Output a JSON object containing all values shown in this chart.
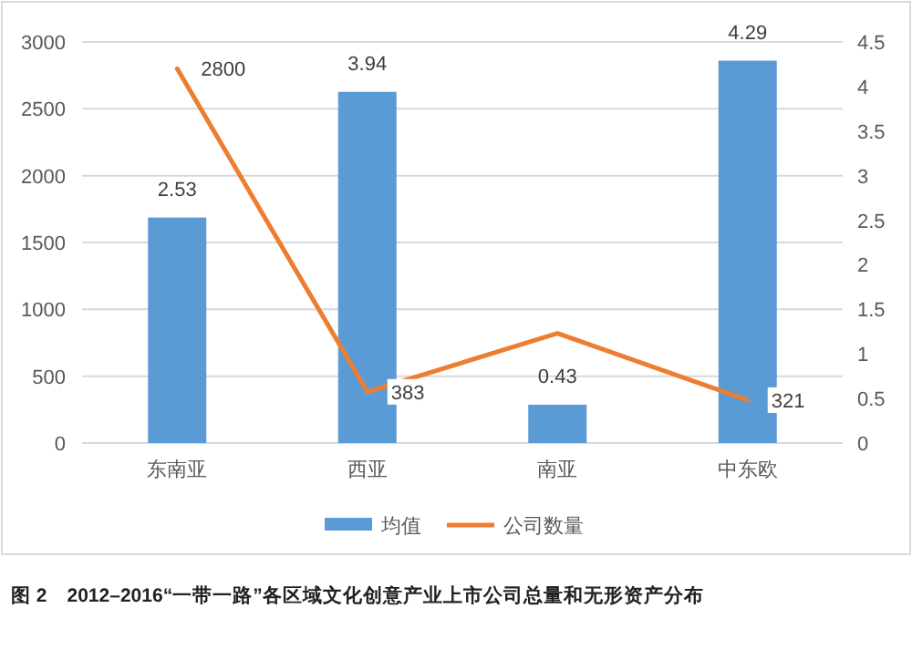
{
  "chart_data": {
    "type": "bar",
    "categories": [
      "东南亚",
      "西亚",
      "南亚",
      "中东欧"
    ],
    "series": [
      {
        "name": "均值",
        "axis": "y2",
        "color": "#5b9bd5",
        "values": [
          2.53,
          3.94,
          0.43,
          4.29
        ],
        "value_labels": [
          "2.53",
          "3.94",
          "0.43",
          "4.29"
        ]
      },
      {
        "name": "公司数量",
        "type": "line",
        "axis": "y",
        "color": "#ed7d31",
        "values": [
          2800,
          383,
          820,
          321
        ],
        "value_labels": [
          "2800",
          "383",
          null,
          "321"
        ]
      }
    ],
    "ylim": [
      0,
      3000
    ],
    "yticks": [
      0,
      500,
      1000,
      1500,
      2000,
      2500,
      3000
    ],
    "y2lim": [
      0,
      4.5
    ],
    "y2ticks": [
      0,
      0.5,
      1,
      1.5,
      2,
      2.5,
      3,
      3.5,
      4,
      4.5
    ],
    "grid": "y",
    "legend": "bottom",
    "marker": "none",
    "annotations": [
      "图 2　2012–2016“一带一路”各区域文化创意产业上市公司总量和无形资产分布"
    ]
  }
}
